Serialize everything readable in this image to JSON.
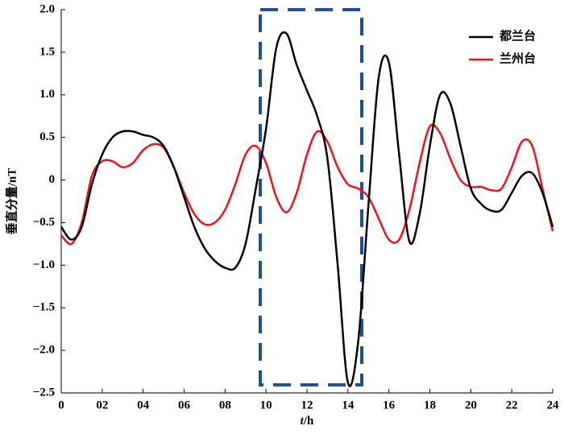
{
  "chart_data": {
    "type": "line",
    "x_label_italic": "t",
    "x_label": "/h",
    "y_label": "垂直分量/nT",
    "x": [
      0,
      0.5,
      1,
      1.5,
      2,
      2.5,
      3,
      3.5,
      4,
      4.5,
      5,
      5.5,
      6,
      6.5,
      7,
      7.5,
      8,
      8.5,
      9,
      9.5,
      10,
      10.5,
      11,
      11.5,
      12,
      12.5,
      13,
      13.5,
      14,
      14.5,
      15,
      15.5,
      16,
      16.5,
      17,
      17.5,
      18,
      18.5,
      19,
      19.5,
      20,
      20.5,
      21,
      21.5,
      22,
      22.5,
      23,
      23.5,
      24
    ],
    "series": [
      {
        "name": "都兰台",
        "color": "#000000",
        "values": [
          -0.55,
          -0.7,
          -0.55,
          -0.05,
          0.3,
          0.5,
          0.57,
          0.57,
          0.53,
          0.5,
          0.4,
          0.15,
          -0.2,
          -0.55,
          -0.8,
          -0.95,
          -1.03,
          -1.03,
          -0.75,
          -0.1,
          0.6,
          1.55,
          1.72,
          1.35,
          1.05,
          0.75,
          0.25,
          -1.0,
          -2.38,
          -1.9,
          -0.3,
          1.2,
          1.38,
          0.3,
          -0.72,
          -0.4,
          0.4,
          1.0,
          0.9,
          0.4,
          -0.1,
          -0.28,
          -0.36,
          -0.35,
          -0.15,
          0.05,
          0.08,
          -0.15,
          -0.55
        ]
      },
      {
        "name": "兰州台",
        "color": "#e8141b",
        "values": [
          -0.65,
          -0.75,
          -0.5,
          0.05,
          0.22,
          0.22,
          0.15,
          0.2,
          0.35,
          0.42,
          0.38,
          0.15,
          -0.15,
          -0.4,
          -0.52,
          -0.5,
          -0.35,
          -0.05,
          0.3,
          0.4,
          0.2,
          -0.2,
          -0.38,
          -0.15,
          0.3,
          0.57,
          0.45,
          0.15,
          -0.05,
          -0.1,
          -0.2,
          -0.45,
          -0.7,
          -0.7,
          -0.35,
          0.2,
          0.63,
          0.55,
          0.25,
          0.0,
          -0.08,
          -0.08,
          -0.12,
          -0.1,
          0.15,
          0.45,
          0.4,
          -0.1,
          -0.6
        ]
      }
    ],
    "xlim": [
      0,
      24
    ],
    "xticks": [
      0,
      {
        "value": 2,
        "label": "02"
      },
      {
        "value": 4,
        "label": "04"
      },
      {
        "value": 6,
        "label": "06"
      },
      {
        "value": 8,
        "label": "08"
      },
      10,
      12,
      14,
      16,
      18,
      20,
      22,
      24
    ],
    "ylim": [
      -2.5,
      2.0
    ],
    "yticks": [
      {
        "value": -2.5,
        "label": "−2.5"
      },
      {
        "value": -2.0,
        "label": "−2.0"
      },
      {
        "value": -1.5,
        "label": "−1.5"
      },
      {
        "value": -1.0,
        "label": "−1.0"
      },
      {
        "value": -0.5,
        "label": "−0.5"
      },
      0,
      {
        "value": 0.5,
        "label": "0.5"
      },
      {
        "value": 1.0,
        "label": "1.0"
      },
      {
        "value": 1.5,
        "label": "1.5"
      },
      {
        "value": 2.0,
        "label": "2.0"
      }
    ],
    "grid": false,
    "legend": "upper right"
  }
}
